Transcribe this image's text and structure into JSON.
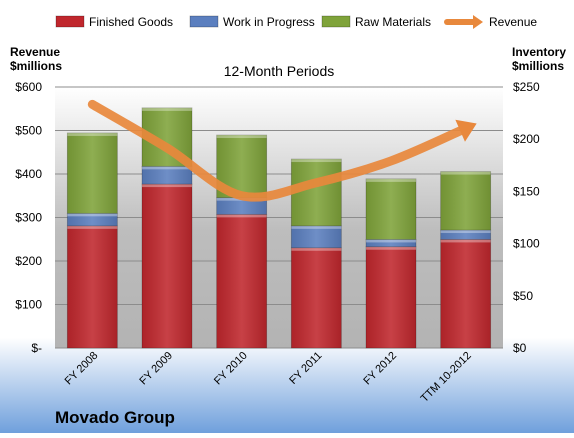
{
  "chart_data": {
    "type": "bar",
    "stacked": true,
    "title": "12-Month Periods",
    "company": "Movado Group",
    "left_axis_label": [
      "Revenue",
      "$millions"
    ],
    "right_axis_label": [
      "Inventory",
      "$millions"
    ],
    "left_ylim": [
      0,
      600
    ],
    "right_ylim": [
      0,
      250
    ],
    "left_ticks": [
      "$-",
      "$100",
      "$200",
      "$300",
      "$400",
      "$500",
      "$600"
    ],
    "right_ticks": [
      "$0",
      "$50",
      "$100",
      "$150",
      "$200",
      "$250"
    ],
    "categories": [
      "FY 2008",
      "FY 2009",
      "FY 2010",
      "FY 2011",
      "FY 2012",
      "TTM 10-2012"
    ],
    "series": [
      {
        "name": "Finished Goods",
        "color": "#c0272d",
        "values": [
          117,
          157,
          128,
          96,
          97,
          104
        ]
      },
      {
        "name": "Work in Progress",
        "color": "#5b7fbf",
        "values": [
          12,
          17,
          16,
          21,
          7,
          9
        ]
      },
      {
        "name": "Raw Materials",
        "color": "#7fa33a",
        "values": [
          77,
          56,
          60,
          64,
          58,
          56
        ]
      }
    ],
    "line_series": {
      "name": "Revenue",
      "color": "#e8883c",
      "axis": "left",
      "values": [
        560,
        460,
        350,
        380,
        430,
        505
      ]
    },
    "grid": true,
    "legend": "top"
  }
}
